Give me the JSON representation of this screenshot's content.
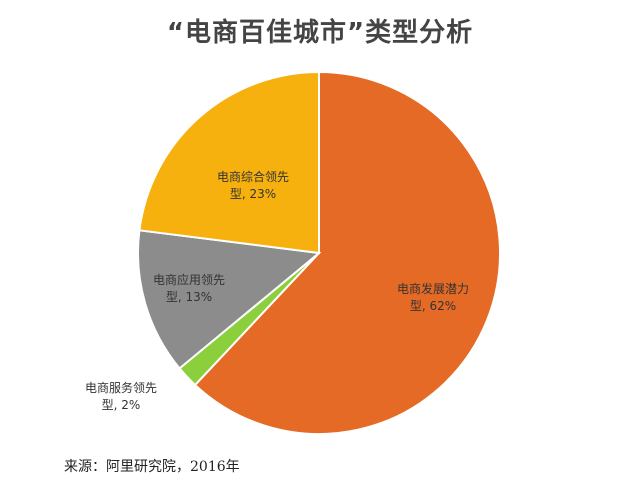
{
  "chart_data": {
    "type": "pie",
    "title": "“电商百佳城市”类型分析",
    "slices": [
      {
        "label_line1": "电商发展潜力",
        "label_line2": "型, 62%",
        "value": 62,
        "color": "#E46A25",
        "label_color": "#333333"
      },
      {
        "label_line1": "电商服务领先",
        "label_line2": "型, 2%",
        "value": 2,
        "color": "#8CCF3C",
        "label_color": "#333333"
      },
      {
        "label_line1": "电商应用领先",
        "label_line2": "型, 13%",
        "value": 13,
        "color": "#8C8C8C",
        "label_color": "#333333"
      },
      {
        "label_line1": "电商综合领先",
        "label_line2": "型, 23%",
        "value": 23,
        "color": "#F7B10E",
        "label_color": "#333333"
      }
    ],
    "start": "12 o'clock",
    "direction": "clockwise",
    "legend": "none"
  },
  "source_note": "来源：阿里研究院，2016年"
}
